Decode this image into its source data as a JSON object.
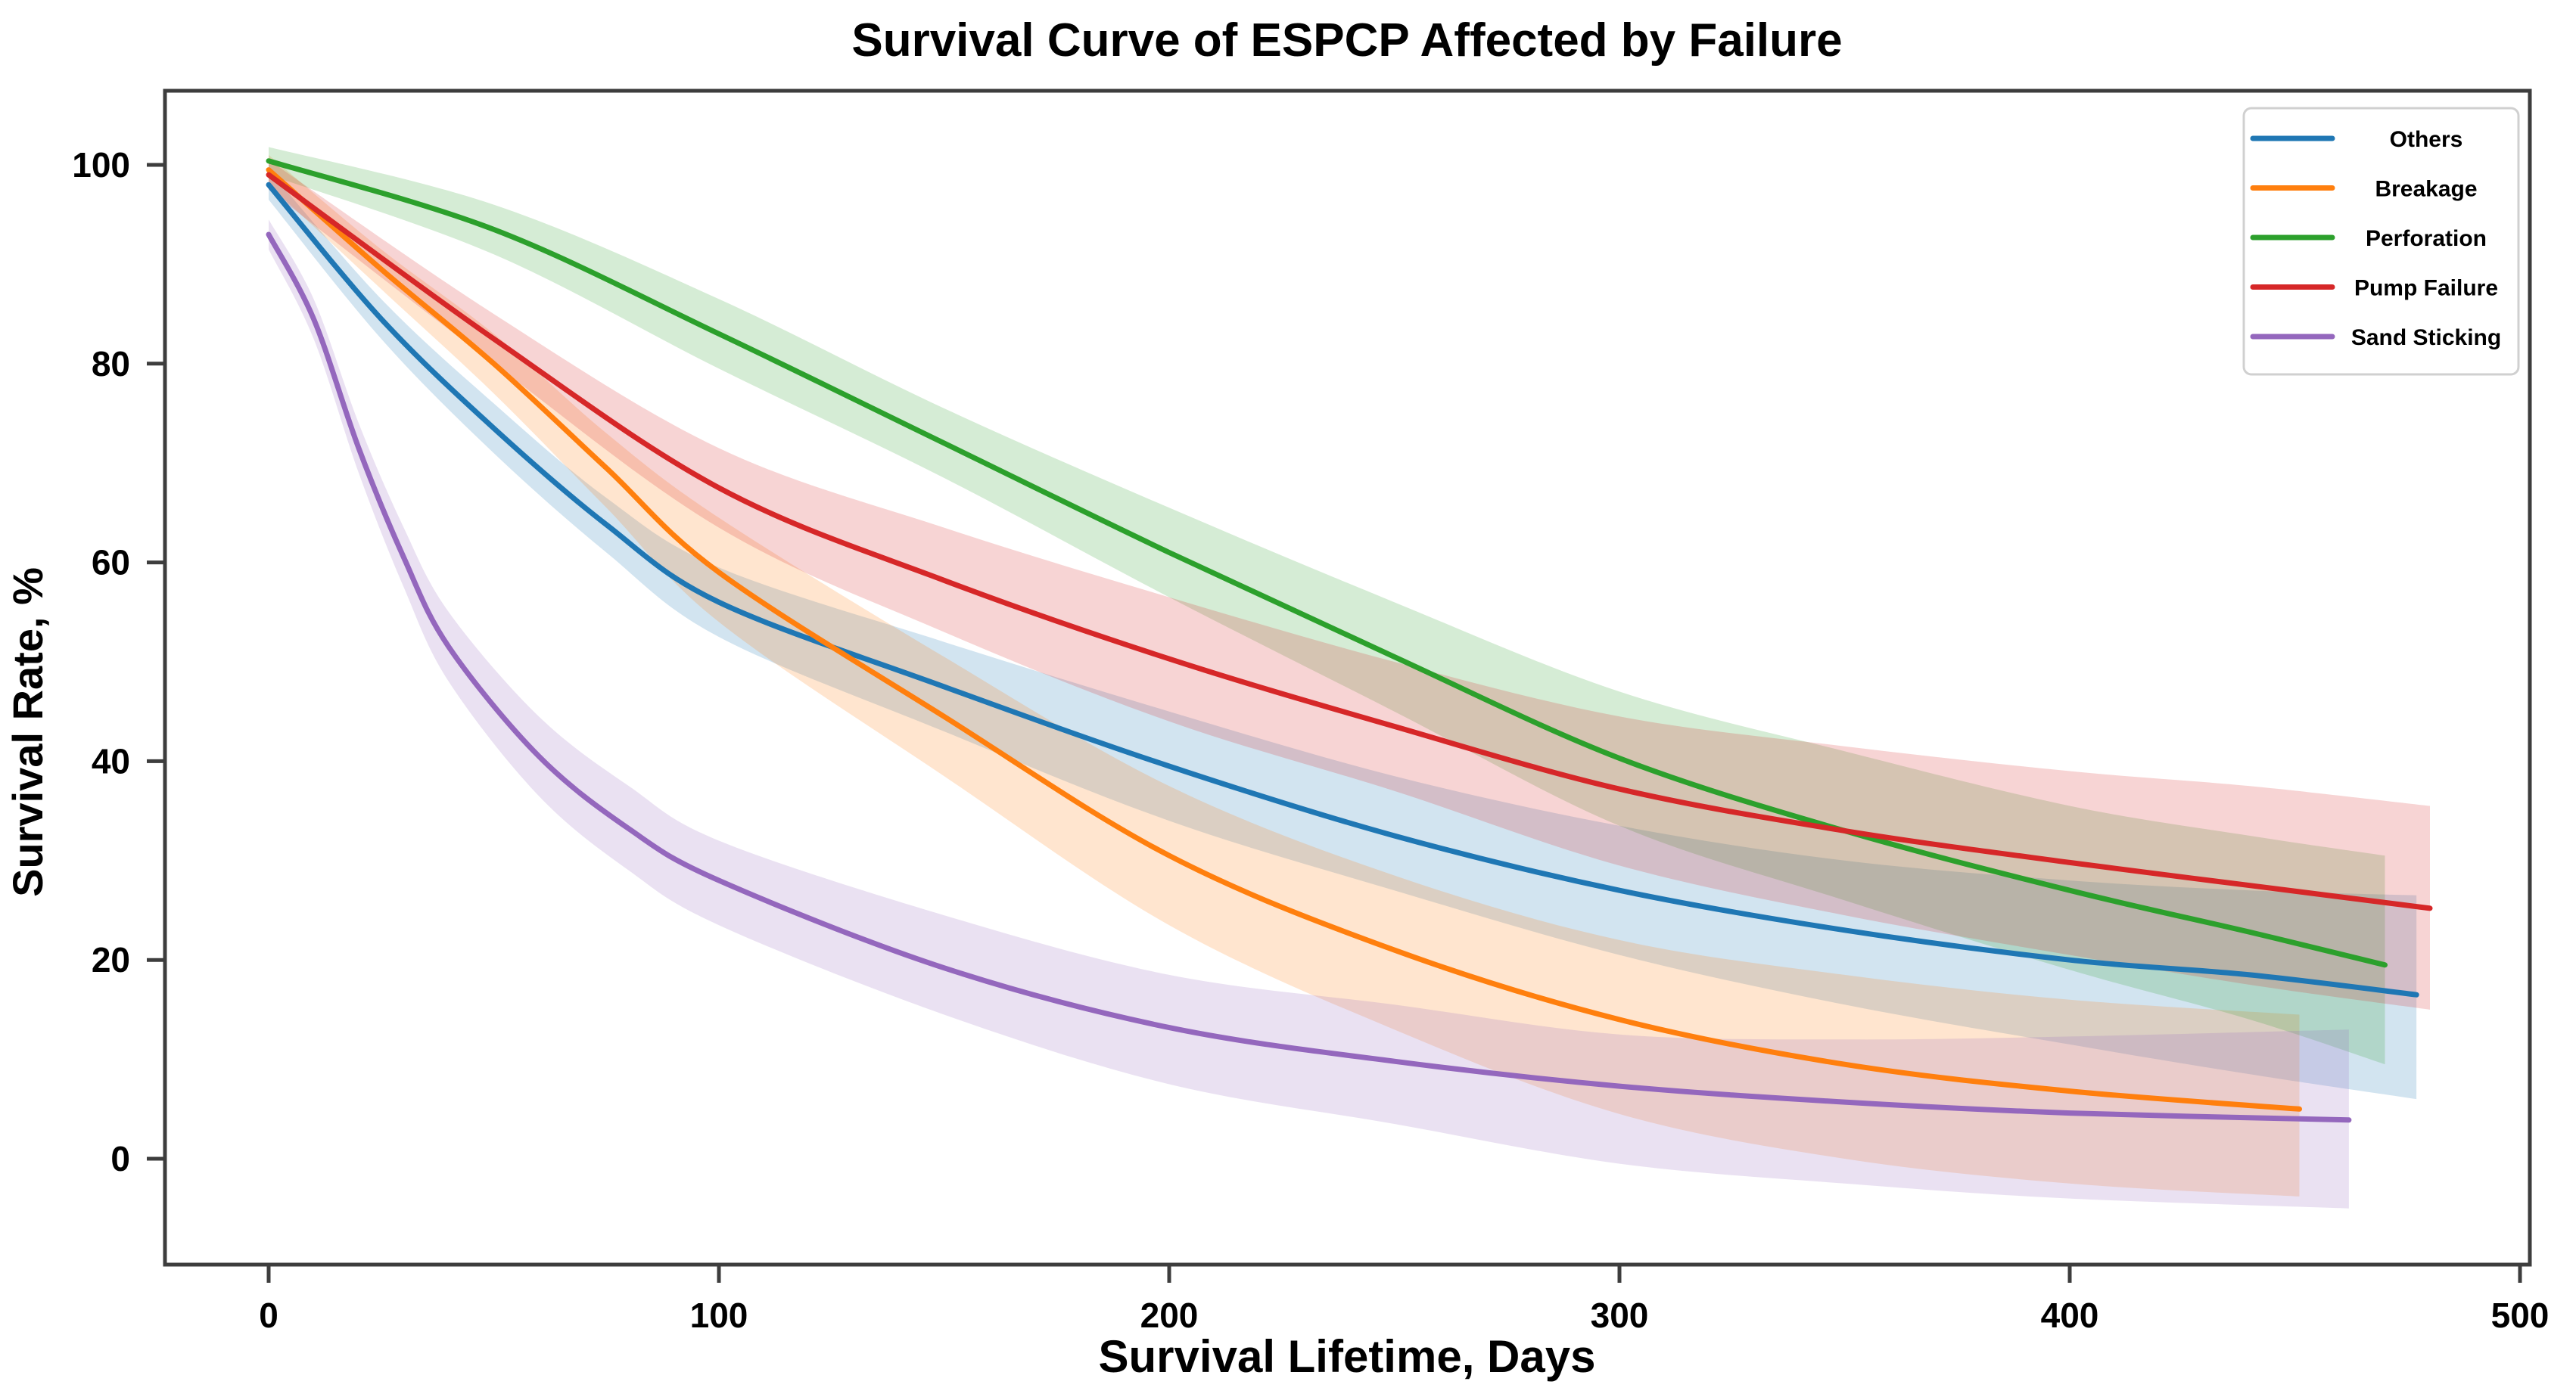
{
  "title": "Survival Curve of ESPCP Affected by Failure",
  "axes": {
    "x_label": "Survival Lifetime, Days",
    "y_label": "Survival Rate, %",
    "x_ticks": [
      0,
      100,
      200,
      300,
      400,
      500
    ],
    "y_ticks": [
      0,
      20,
      40,
      60,
      80,
      100
    ]
  },
  "colors": {
    "spine": "#3d3d3d",
    "tick": "#3d3d3d",
    "text": "#000000",
    "legend_border": "#d0d0d0",
    "legend_background": "#ffffff"
  },
  "legend": {
    "entries": [
      "Others",
      "Breakage",
      "Perforation",
      "Pump Failure",
      "Sand Sticking"
    ]
  },
  "chart_data": {
    "type": "line",
    "title": "Survival Curve of ESPCP Affected by Failure",
    "xlabel": "Survival Lifetime, Days",
    "ylabel": "Survival Rate, %",
    "xlim": [
      -23,
      502
    ],
    "ylim": [
      -10.7,
      107.5
    ],
    "grid": false,
    "legend_position": "upper right",
    "band_alpha": 0.2,
    "series": [
      {
        "name": "Others",
        "color": "#1f77b4",
        "x": [
          0,
          25,
          50,
          75,
          100,
          150,
          200,
          250,
          300,
          350,
          400,
          440,
          477
        ],
        "y": [
          98,
          84.5,
          73.5,
          63.8,
          56,
          47.5,
          39.5,
          32.5,
          27,
          23,
          20,
          18.5,
          16.5
        ],
        "band_lo": [
          96.5,
          82.5,
          71,
          61,
          52.5,
          43,
          34,
          27,
          20.5,
          15.5,
          11.5,
          8.5,
          6
        ],
        "band_hi": [
          99.5,
          86.5,
          76,
          66.5,
          59.5,
          52,
          45,
          38.5,
          33.5,
          30,
          28,
          27,
          26.5
        ]
      },
      {
        "name": "Breakage",
        "color": "#ff7f0e",
        "x": [
          0,
          25,
          50,
          75,
          100,
          150,
          200,
          250,
          300,
          350,
          400,
          451
        ],
        "y": [
          99.5,
          89.5,
          80,
          69.5,
          59,
          44.5,
          30.5,
          21,
          14,
          9.5,
          6.8,
          5
        ],
        "band_lo": [
          98,
          87.5,
          77,
          65.5,
          54,
          38.5,
          23.5,
          13,
          4.5,
          0,
          -2.5,
          -3.8
        ],
        "band_hi": [
          101,
          91.5,
          83,
          73,
          64.5,
          50.5,
          37.5,
          28.5,
          22,
          18.5,
          16,
          14.5
        ]
      },
      {
        "name": "Perforation",
        "color": "#2ca02c",
        "x": [
          0,
          50,
          100,
          150,
          200,
          250,
          300,
          350,
          400,
          440,
          470
        ],
        "y": [
          100.4,
          93.5,
          83,
          72,
          61,
          50.5,
          40.3,
          33,
          27,
          22.8,
          19.5
        ],
        "band_lo": [
          99,
          91,
          79.5,
          68.5,
          56.5,
          45,
          33.5,
          26,
          19,
          14,
          9.5
        ],
        "band_hi": [
          101.8,
          96,
          86.5,
          75.5,
          65.5,
          56,
          47,
          41,
          35.5,
          32.5,
          30.5
        ]
      },
      {
        "name": "Pump Failure",
        "color": "#d62728",
        "x": [
          0,
          50,
          100,
          150,
          200,
          250,
          300,
          350,
          400,
          440,
          480
        ],
        "y": [
          99,
          82.5,
          67.5,
          58.2,
          50.3,
          43.5,
          37.2,
          33,
          29.8,
          27.5,
          25.2
        ],
        "band_lo": [
          97.5,
          80,
          63.5,
          53,
          44,
          37,
          29.5,
          24.5,
          20.5,
          17.5,
          15
        ],
        "band_hi": [
          100.5,
          85,
          71.5,
          63.5,
          56.5,
          50,
          44.5,
          41.5,
          39,
          37.5,
          35.5
        ]
      },
      {
        "name": "Sand Sticking",
        "color": "#9467bd",
        "x": [
          0,
          10,
          20,
          30,
          40,
          60,
          80,
          100,
          150,
          200,
          250,
          300,
          350,
          400,
          462
        ],
        "y": [
          93,
          84.5,
          71.5,
          60.5,
          51.5,
          40.5,
          33.2,
          28,
          19.2,
          13.2,
          9.8,
          7.3,
          5.7,
          4.6,
          3.9
        ],
        "band_lo": [
          91.5,
          82.5,
          69,
          57.5,
          48,
          36.5,
          29,
          23.5,
          14.5,
          7.5,
          3.5,
          -0.5,
          -2.5,
          -4,
          -5
        ],
        "band_hi": [
          94.5,
          86.5,
          74,
          63.5,
          55,
          44.5,
          37.5,
          32,
          24.5,
          18.5,
          15.5,
          12.5,
          12,
          12.3,
          13
        ]
      }
    ]
  }
}
